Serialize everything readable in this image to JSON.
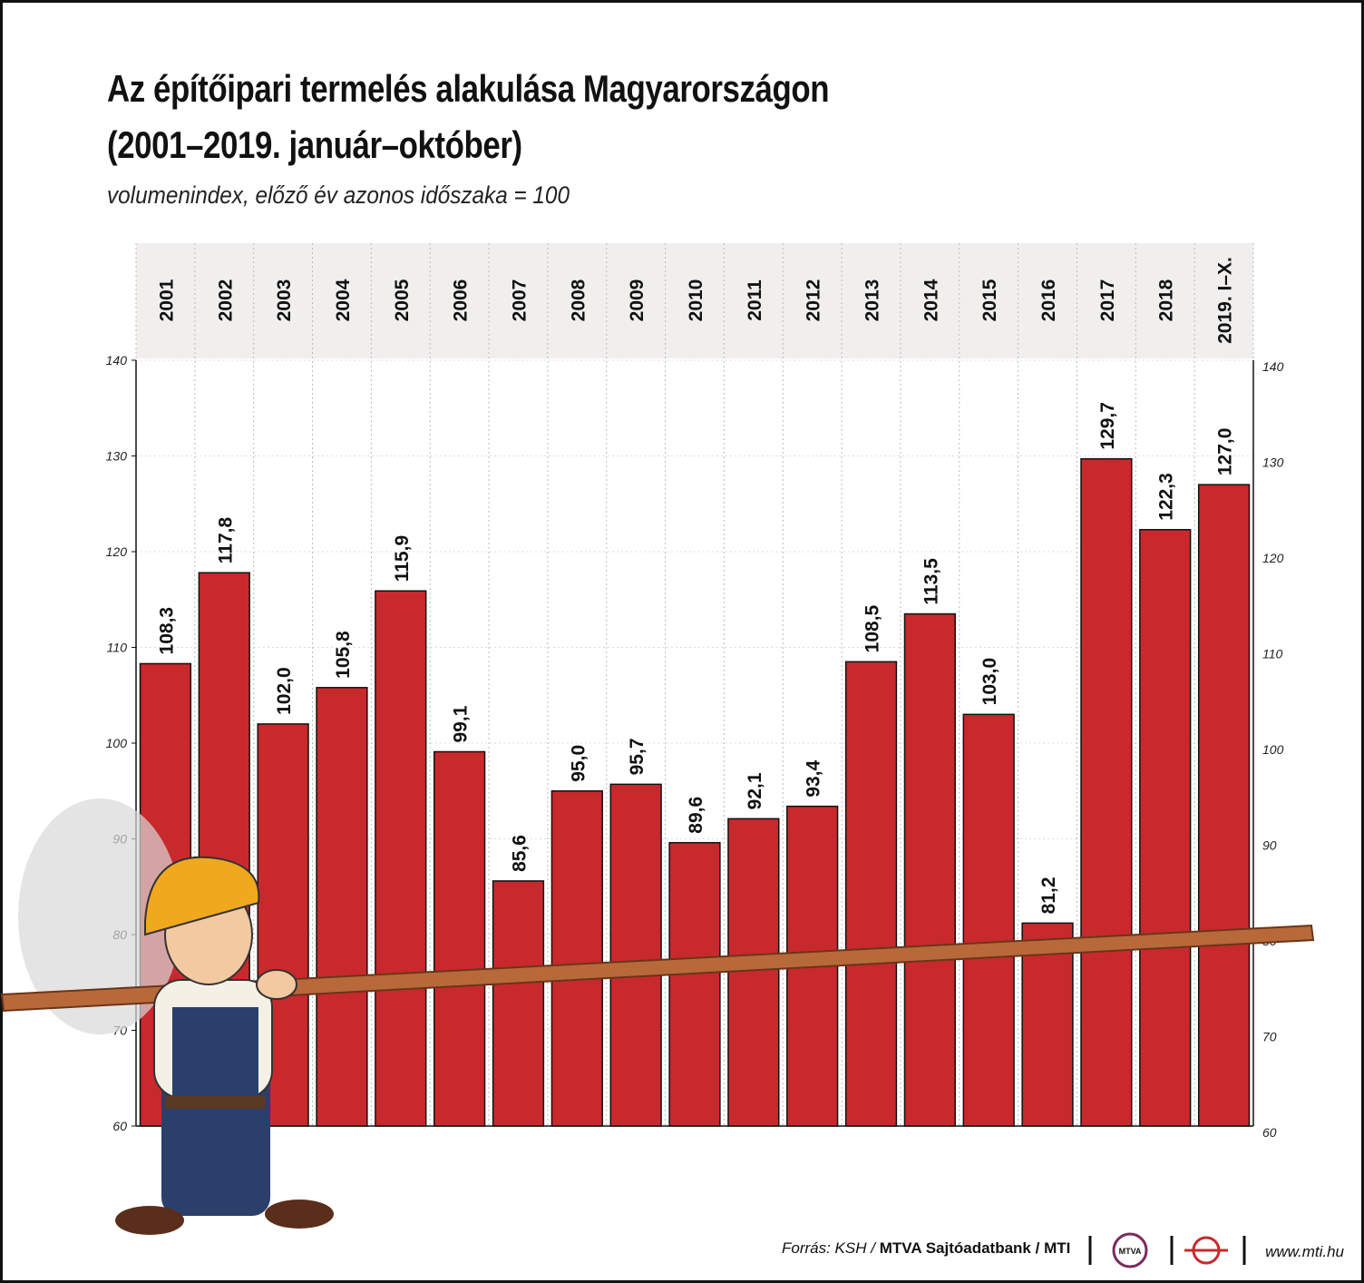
{
  "chart_data": {
    "type": "bar",
    "title": [
      "Az építőipari termelés alakulása Magyarországon",
      "(2001–2019. január–október)"
    ],
    "subtitle": "volumenindex, előző év azonos időszaka = 100",
    "categories": [
      "2001",
      "2002",
      "2003",
      "2004",
      "2005",
      "2006",
      "2007",
      "2008",
      "2009",
      "2010",
      "2011",
      "2012",
      "2013",
      "2014",
      "2015",
      "2016",
      "2017",
      "2018",
      "2019. I–X."
    ],
    "values": [
      108.3,
      117.8,
      102.0,
      105.8,
      115.9,
      99.1,
      85.6,
      95.0,
      95.7,
      89.6,
      92.1,
      93.4,
      108.5,
      113.5,
      103.0,
      81.2,
      129.7,
      122.3,
      127.0
    ],
    "value_labels": [
      "108,3",
      "117,8",
      "102,0",
      "105,8",
      "115,9",
      "99,1",
      "85,6",
      "95,0",
      "95,7",
      "89,6",
      "92,1",
      "93,4",
      "108,5",
      "113,5",
      "103,0",
      "81,2",
      "129,7",
      "122,3",
      "127,0"
    ],
    "color": "#c8292d",
    "ylim": [
      60,
      140
    ],
    "yticks": [
      60,
      70,
      80,
      90,
      100,
      110,
      120,
      130,
      140
    ],
    "grid": true
  },
  "footer": {
    "source": [
      "Forrás: KSH /",
      "MTVA Sajtóadatbank",
      "/ MTI"
    ],
    "logo_text": "MTVA",
    "url": "www.mti.hu"
  }
}
